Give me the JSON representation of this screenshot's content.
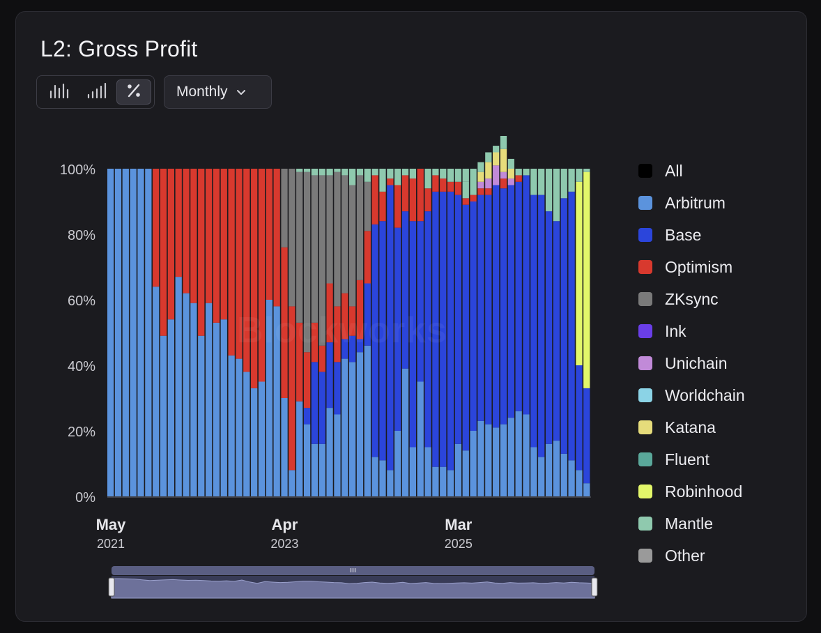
{
  "title": "L2: Gross Profit",
  "watermark": "Blockworks",
  "controls": {
    "modes": [
      {
        "name": "bars-mode",
        "icon": "grouped-bars-icon",
        "active": false
      },
      {
        "name": "line-mode",
        "icon": "ascending-bars-icon",
        "active": false
      },
      {
        "name": "percent-mode",
        "icon": "percent-icon",
        "active": true
      }
    ],
    "frequency": "Monthly"
  },
  "colors": {
    "All": "#000000",
    "Arbitrum": "#5b93dd",
    "Base": "#2b45db",
    "Optimism": "#d8392e",
    "ZKsync": "#7a7a7a",
    "Ink": "#6a3ee8",
    "Unichain": "#c18ad8",
    "Worldchain": "#8bd3e6",
    "Katana": "#e6dc7b",
    "Fluent": "#5aa89a",
    "Robinhood": "#e3f76a",
    "Mantle": "#8fc9ae",
    "Other": "#9a9a9a",
    "axis": "#c9c9cf",
    "navigator_bg": "#3c3f5c"
  },
  "chart_data": {
    "type": "bar",
    "stacked": true,
    "normalized_percent": true,
    "ylim": [
      0,
      100
    ],
    "y_ticks": [
      "0%",
      "20%",
      "40%",
      "60%",
      "80%",
      "100%"
    ],
    "x_ticks": [
      {
        "month": "May",
        "year": "2021",
        "index": 0
      },
      {
        "month": "Apr",
        "year": "2023",
        "index": 23
      },
      {
        "month": "Mar",
        "year": "2025",
        "index": 46
      }
    ],
    "start": "2021-05",
    "series_order": [
      "Arbitrum",
      "Base",
      "Optimism",
      "ZKsync",
      "Ink",
      "Unichain",
      "Worldchain",
      "Katana",
      "Fluent",
      "Robinhood",
      "Mantle",
      "Other"
    ],
    "legend": [
      "All",
      "Arbitrum",
      "Base",
      "Optimism",
      "ZKsync",
      "Ink",
      "Unichain",
      "Worldchain",
      "Katana",
      "Fluent",
      "Robinhood",
      "Mantle",
      "Other"
    ],
    "series": [
      {
        "name": "Arbitrum",
        "values": [
          100,
          100,
          100,
          100,
          100,
          100,
          64,
          49,
          54,
          67,
          62,
          59,
          49,
          59,
          53,
          54,
          43,
          42,
          38,
          33,
          35,
          60,
          58,
          30,
          8,
          29,
          22,
          16,
          16,
          27,
          25,
          42,
          41,
          44,
          46,
          12,
          11,
          8,
          20,
          39,
          15,
          35,
          15,
          9,
          9,
          8,
          16,
          14,
          20,
          23,
          22,
          21,
          22,
          24,
          26,
          25,
          15,
          12,
          16,
          17,
          13,
          11,
          8,
          4
        ]
      },
      {
        "name": "Base",
        "values": [
          0,
          0,
          0,
          0,
          0,
          0,
          0,
          0,
          0,
          0,
          0,
          0,
          0,
          0,
          0,
          0,
          0,
          0,
          0,
          0,
          0,
          0,
          0,
          0,
          0,
          0,
          5,
          25,
          22,
          20,
          16,
          6,
          8,
          4,
          19,
          71,
          73,
          87,
          62,
          48,
          69,
          49,
          72,
          84,
          84,
          85,
          76,
          75,
          70,
          69,
          70,
          74,
          72,
          71,
          70,
          73,
          77,
          80,
          71,
          67,
          78,
          82,
          32,
          29
        ]
      },
      {
        "name": "Optimism",
        "values": [
          0,
          0,
          0,
          0,
          0,
          0,
          36,
          51,
          46,
          33,
          38,
          41,
          51,
          41,
          47,
          46,
          57,
          58,
          62,
          67,
          65,
          40,
          42,
          46,
          50,
          24,
          17,
          12,
          8,
          18,
          17,
          14,
          9,
          18,
          16,
          15,
          9,
          2,
          13,
          11,
          13,
          16,
          7,
          5,
          4,
          3,
          4,
          2,
          2,
          2,
          2,
          0,
          3,
          0,
          2,
          0,
          0,
          0,
          0,
          0,
          0,
          0,
          0,
          0
        ]
      },
      {
        "name": "ZKsync",
        "values": [
          0,
          0,
          0,
          0,
          0,
          0,
          0,
          0,
          0,
          0,
          0,
          0,
          0,
          0,
          0,
          0,
          0,
          0,
          0,
          0,
          0,
          0,
          0,
          24,
          42,
          46,
          55,
          45,
          52,
          33,
          41,
          36,
          37,
          32,
          15,
          0,
          0,
          0,
          0,
          0,
          0,
          0,
          0,
          0,
          0,
          0,
          0,
          0,
          0,
          0,
          0,
          0,
          0,
          0,
          0,
          0,
          0,
          0,
          0,
          0,
          0,
          0,
          0,
          0
        ]
      },
      {
        "name": "Unichain",
        "values": [
          0,
          0,
          0,
          0,
          0,
          0,
          0,
          0,
          0,
          0,
          0,
          0,
          0,
          0,
          0,
          0,
          0,
          0,
          0,
          0,
          0,
          0,
          0,
          0,
          0,
          0,
          0,
          0,
          0,
          0,
          0,
          0,
          0,
          0,
          0,
          0,
          0,
          0,
          0,
          0,
          0,
          0,
          0,
          0,
          0,
          0,
          0,
          0,
          0,
          2,
          3,
          6,
          2,
          2,
          0,
          0,
          0,
          0,
          0,
          0,
          0,
          0,
          0,
          0
        ]
      },
      {
        "name": "Katana",
        "values": [
          0,
          0,
          0,
          0,
          0,
          0,
          0,
          0,
          0,
          0,
          0,
          0,
          0,
          0,
          0,
          0,
          0,
          0,
          0,
          0,
          0,
          0,
          0,
          0,
          0,
          0,
          0,
          0,
          0,
          0,
          0,
          0,
          0,
          0,
          0,
          0,
          0,
          0,
          0,
          0,
          0,
          0,
          0,
          0,
          0,
          0,
          0,
          0,
          0,
          3,
          5,
          4,
          7,
          3,
          0,
          0,
          0,
          0,
          0,
          0,
          0,
          0,
          0,
          0
        ]
      },
      {
        "name": "Robinhood",
        "values": [
          0,
          0,
          0,
          0,
          0,
          0,
          0,
          0,
          0,
          0,
          0,
          0,
          0,
          0,
          0,
          0,
          0,
          0,
          0,
          0,
          0,
          0,
          0,
          0,
          0,
          0,
          0,
          0,
          0,
          0,
          0,
          0,
          0,
          0,
          0,
          0,
          0,
          0,
          0,
          0,
          0,
          0,
          0,
          0,
          0,
          0,
          0,
          0,
          0,
          0,
          0,
          0,
          0,
          0,
          0,
          0,
          0,
          0,
          0,
          0,
          0,
          0,
          56,
          66
        ]
      },
      {
        "name": "Mantle",
        "values": [
          0,
          0,
          0,
          0,
          0,
          0,
          0,
          0,
          0,
          0,
          0,
          0,
          0,
          0,
          0,
          0,
          0,
          0,
          0,
          0,
          0,
          0,
          0,
          0,
          0,
          1,
          1,
          2,
          2,
          2,
          1,
          2,
          5,
          2,
          4,
          2,
          2,
          3,
          5,
          2,
          3,
          0,
          6,
          2,
          3,
          4,
          4,
          5,
          3,
          3,
          3,
          2,
          4,
          3,
          2,
          2,
          8,
          8,
          13,
          16,
          9,
          7,
          4,
          1
        ]
      }
    ],
    "navigator": {
      "profile": [
        100,
        100,
        99,
        98,
        94,
        90,
        92,
        94,
        95,
        93,
        91,
        92,
        90,
        88,
        87,
        89,
        86,
        93,
        83,
        76,
        85,
        82,
        80,
        81,
        84,
        87,
        87,
        84,
        82,
        80,
        79,
        74,
        76,
        80,
        82,
        78,
        76,
        78,
        81,
        75,
        77,
        80,
        76,
        75,
        76,
        78,
        79,
        77,
        80,
        83,
        78,
        76,
        80,
        77,
        78,
        79,
        76,
        77,
        80,
        78,
        81,
        79,
        78,
        76
      ]
    }
  }
}
